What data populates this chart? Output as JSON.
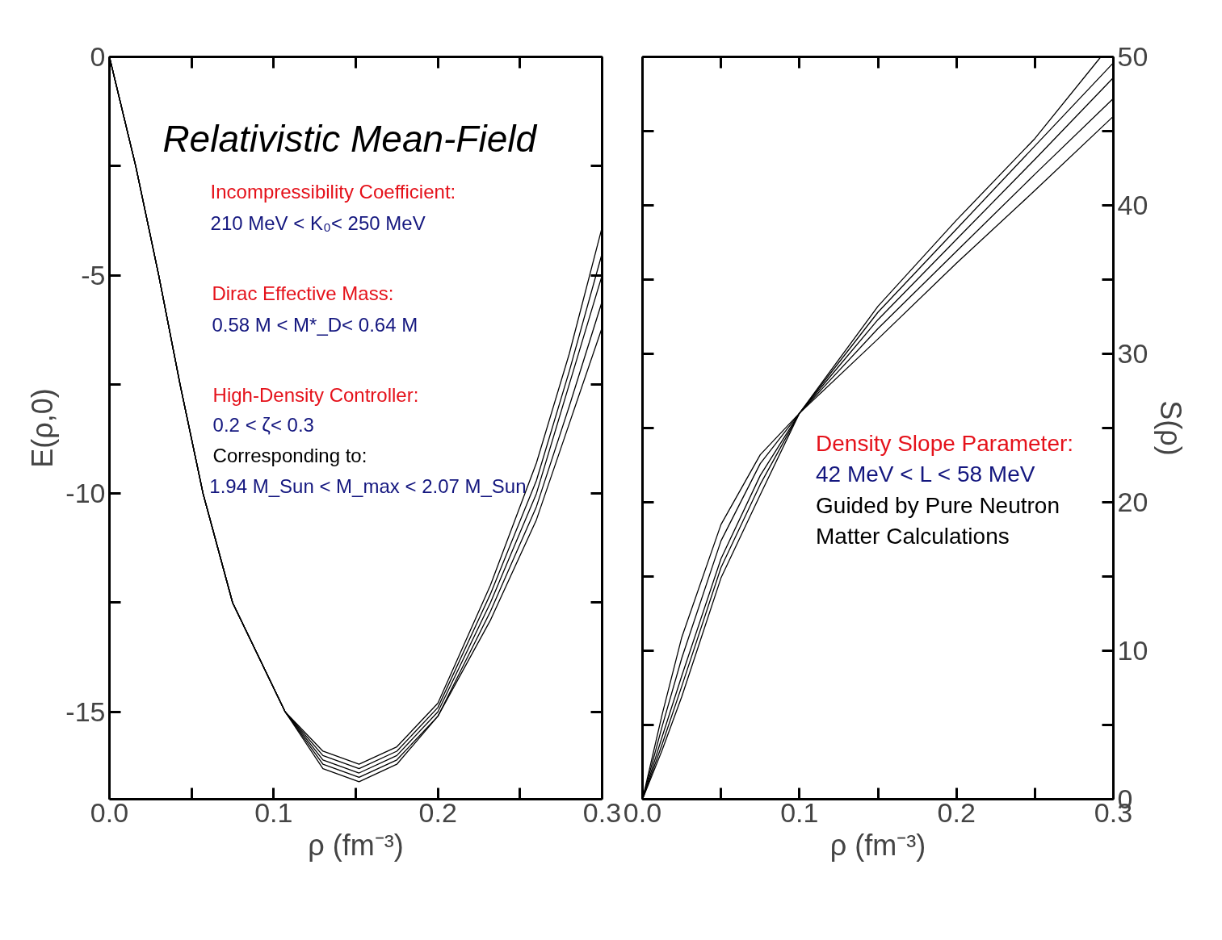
{
  "chart_data": [
    {
      "type": "line",
      "title": "Relativistic Mean-Field",
      "xlabel": "ρ (fm⁻³)",
      "ylabel": "E(ρ,0)",
      "xlim": [
        0,
        0.3
      ],
      "ylim": [
        -17,
        0
      ],
      "xticks": [
        {
          "value": 0,
          "label": "0.0"
        },
        {
          "value": 0.05,
          "label": null
        },
        {
          "value": 0.1,
          "label": "0.1"
        },
        {
          "value": 0.15,
          "label": null
        },
        {
          "value": 0.2,
          "label": "0.2"
        },
        {
          "value": 0.25,
          "label": null
        },
        {
          "value": 0.3,
          "label": "0.3"
        }
      ],
      "yticks": [
        0,
        {
          "value": -2.5,
          "label": null
        },
        -5,
        {
          "value": -7.5,
          "label": null
        },
        -10,
        {
          "value": -12.5,
          "label": null
        },
        -15
      ],
      "x": [
        0,
        0.016,
        0.03,
        0.043,
        0.057,
        0.075,
        0.107,
        0.13,
        0.152,
        0.175,
        0.2,
        0.232,
        0.26,
        0.28,
        0.3
      ],
      "series": [
        {
          "color": "#000000",
          "values": [
            0,
            -2.5,
            -5,
            -7.5,
            -10,
            -12.5,
            -15,
            -15.9,
            -16.2,
            -15.8,
            -14.8,
            -12.1,
            -9.3,
            -6.8,
            -3.9
          ]
        },
        {
          "color": "#000000",
          "values": [
            0,
            -2.5,
            -5,
            -7.5,
            -10,
            -12.5,
            -15,
            -16.0,
            -16.3,
            -15.9,
            -14.9,
            -12.3,
            -9.7,
            -7.2,
            -4.5
          ]
        },
        {
          "color": "#000000",
          "values": [
            0,
            -2.5,
            -5,
            -7.5,
            -10,
            -12.5,
            -15,
            -16.1,
            -16.4,
            -16.0,
            -15.0,
            -12.5,
            -10.0,
            -7.5,
            -5.0
          ]
        },
        {
          "color": "#000000",
          "values": [
            0,
            -2.5,
            -5,
            -7.5,
            -10,
            -12.5,
            -15,
            -16.2,
            -16.5,
            -16.1,
            -15.1,
            -12.7,
            -10.3,
            -8.0,
            -5.6
          ]
        },
        {
          "color": "#000000",
          "values": [
            0,
            -2.5,
            -5,
            -7.5,
            -10,
            -12.5,
            -15,
            -16.3,
            -16.6,
            -16.2,
            -15.1,
            -12.9,
            -10.6,
            -8.4,
            -6.2
          ]
        }
      ],
      "annotations": [
        "Incompressibility Coefficient:",
        "210 MeV < K₀< 250 MeV",
        "Dirac Effective Mass:",
        "0.58 M < M*_D< 0.64 M",
        "High-Density Controller:",
        "0.2 < ζ< 0.3",
        "Corresponding to:",
        "1.94 M_Sun < M_max < 2.07 M_Sun"
      ]
    },
    {
      "type": "line",
      "xlabel": "ρ (fm⁻³)",
      "ylabel": "S(ρ)",
      "xlim": [
        0,
        0.3
      ],
      "ylim": [
        0,
        50
      ],
      "xticks": [
        {
          "value": 0,
          "label": "0.0"
        },
        {
          "value": 0.05,
          "label": null
        },
        {
          "value": 0.1,
          "label": "0.1"
        },
        {
          "value": 0.15,
          "label": null
        },
        {
          "value": 0.2,
          "label": "0.2"
        },
        {
          "value": 0.25,
          "label": null
        },
        {
          "value": 0.3,
          "label": "0.3"
        }
      ],
      "yticks": [
        0,
        {
          "value": 5,
          "label": null
        },
        10,
        {
          "value": 15,
          "label": null
        },
        20,
        {
          "value": 25,
          "label": null
        },
        30,
        {
          "value": 35,
          "label": null
        },
        40,
        {
          "value": 45,
          "label": null
        },
        50
      ],
      "x": [
        0,
        0.0125,
        0.025,
        0.05,
        0.075,
        0.1,
        0.15,
        0.2,
        0.25,
        0.3
      ],
      "series": [
        {
          "color": "#000000",
          "x": [
            0,
            0.0125,
            0.025,
            0.05,
            0.075,
            0.1,
            0.15,
            0.2,
            0.25,
            0.292
          ],
          "values": [
            0,
            3.3,
            6.9,
            14.9,
            20.5,
            26,
            33.2,
            39.0,
            44.5,
            50
          ]
        },
        {
          "color": "#000000",
          "values": [
            0,
            3.7,
            7.6,
            15.6,
            21.2,
            26,
            32.8,
            38.4,
            44.0,
            49.6
          ]
        },
        {
          "color": "#000000",
          "values": [
            0,
            4.2,
            8.3,
            16.2,
            21.8,
            26,
            32.3,
            37.7,
            43.1,
            48.6
          ]
        },
        {
          "color": "#000000",
          "values": [
            0,
            4.9,
            9.5,
            17.4,
            22.6,
            26,
            31.7,
            36.9,
            42.1,
            47.2
          ]
        },
        {
          "color": "#000000",
          "values": [
            0,
            5.7,
            10.9,
            18.5,
            23.2,
            26,
            31.0,
            36.1,
            41.0,
            46.0
          ]
        }
      ],
      "annotations": [
        "Density Slope Parameter:",
        "42 MeV < L < 58 MeV",
        "Guided by Pure Neutron",
        "Matter Calculations"
      ]
    }
  ]
}
